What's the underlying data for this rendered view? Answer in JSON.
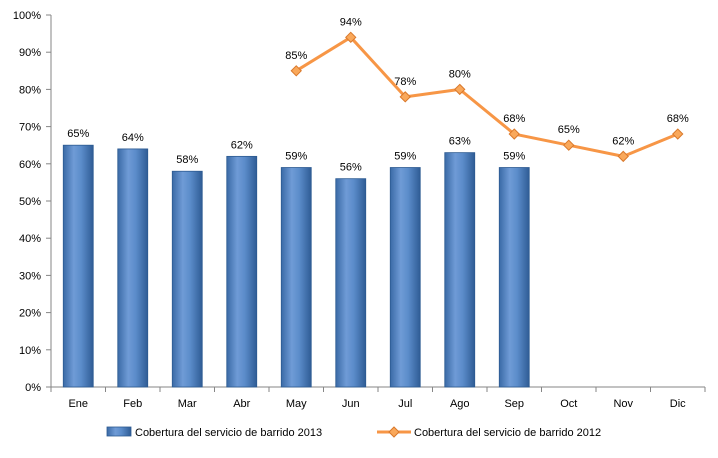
{
  "chart_data": {
    "type": "bar",
    "categories": [
      "Ene",
      "Feb",
      "Mar",
      "Abr",
      "May",
      "Jun",
      "Jul",
      "Ago",
      "Sep",
      "Oct",
      "Nov",
      "Dic"
    ],
    "y_ticks": [
      "0%",
      "10%",
      "20%",
      "30%",
      "40%",
      "50%",
      "60%",
      "70%",
      "80%",
      "90%",
      "100%"
    ],
    "ylim": [
      0,
      100
    ],
    "grid": false,
    "legend_position": "bottom",
    "series": [
      {
        "name": "Cobertura del servicio de barrido 2013",
        "type": "bar",
        "color": "#4f81bd",
        "values": [
          65,
          64,
          58,
          62,
          59,
          56,
          59,
          63,
          59,
          null,
          null,
          null
        ],
        "labels": [
          "65%",
          "64%",
          "58%",
          "62%",
          "59%",
          "56%",
          "59%",
          "63%",
          "59%",
          null,
          null,
          null
        ]
      },
      {
        "name": "Cobertura del servicio de barrido 2012",
        "type": "line",
        "color": "#f79646",
        "values": [
          null,
          null,
          null,
          null,
          85,
          94,
          78,
          80,
          68,
          65,
          62,
          68
        ],
        "labels": [
          null,
          null,
          null,
          null,
          "85%",
          "94%",
          "78%",
          "80%",
          "68%",
          "65%",
          "62%",
          "68%"
        ]
      }
    ]
  }
}
